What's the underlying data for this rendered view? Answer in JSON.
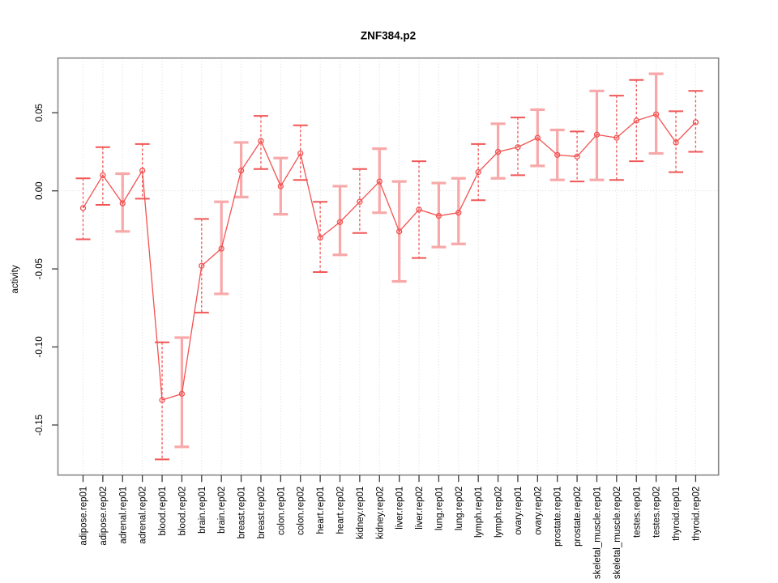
{
  "chart_data": {
    "type": "line",
    "title": "ZNF384.p2",
    "xlabel": "",
    "ylabel": "activity",
    "ylim": [
      -0.183,
      0.085
    ],
    "yticks": [
      {
        "value": 0.05,
        "label": "0.05"
      },
      {
        "value": 0.0,
        "label": "0.00"
      },
      {
        "value": -0.05,
        "label": "-0.05"
      },
      {
        "value": -0.1,
        "label": "-0.10"
      },
      {
        "value": -0.15,
        "label": "-0.15"
      }
    ],
    "grid": "dotted vertical line at every category; dotted horizontal line at y=0",
    "legend_position": "none",
    "marker": "open-circle",
    "error_bars": true,
    "categories": [
      "adipose.rep01",
      "adipose.rep02",
      "adrenal.rep01",
      "adrenal.rep02",
      "blood.rep01",
      "blood.rep02",
      "brain.rep01",
      "brain.rep02",
      "breast.rep01",
      "breast.rep02",
      "colon.rep01",
      "colon.rep02",
      "heart.rep01",
      "heart.rep02",
      "kidney.rep01",
      "kidney.rep02",
      "liver.rep01",
      "liver.rep02",
      "lung.rep01",
      "lung.rep02",
      "lymph.rep01",
      "lymph.rep02",
      "ovary.rep01",
      "ovary.rep02",
      "prostate.rep01",
      "prostate.rep02",
      "skeletal_muscle.rep01",
      "skeletal_muscle.rep02",
      "testes.rep01",
      "testes.rep02",
      "thyroid.rep01",
      "thyroid.rep02"
    ],
    "series": [
      {
        "name": "activity",
        "values": [
          -0.011,
          0.01,
          -0.008,
          0.013,
          -0.134,
          -0.13,
          -0.048,
          -0.037,
          0.013,
          0.032,
          0.003,
          0.024,
          -0.03,
          -0.02,
          -0.007,
          0.006,
          -0.026,
          -0.012,
          -0.016,
          -0.014,
          0.012,
          0.025,
          0.028,
          0.034,
          0.023,
          0.022,
          0.036,
          0.034,
          0.045,
          0.049,
          0.031,
          0.044
        ],
        "error_low": [
          -0.031,
          -0.009,
          -0.026,
          -0.005,
          -0.172,
          -0.164,
          -0.078,
          -0.066,
          -0.004,
          0.014,
          -0.015,
          0.007,
          -0.052,
          -0.041,
          -0.027,
          -0.014,
          -0.058,
          -0.043,
          -0.036,
          -0.034,
          -0.006,
          0.008,
          0.01,
          0.016,
          0.007,
          0.006,
          0.007,
          0.007,
          0.019,
          0.024,
          0.012,
          0.025
        ],
        "error_high": [
          0.008,
          0.028,
          0.011,
          0.03,
          -0.097,
          -0.094,
          -0.018,
          -0.007,
          0.031,
          0.048,
          0.021,
          0.042,
          -0.007,
          0.003,
          0.014,
          0.027,
          0.006,
          0.019,
          0.005,
          0.008,
          0.03,
          0.043,
          0.047,
          0.052,
          0.039,
          0.038,
          0.064,
          0.061,
          0.071,
          0.075,
          0.051,
          0.064
        ],
        "bar_styles": [
          "dashed",
          "dashed",
          "solid",
          "dashed",
          "dashed",
          "solid",
          "dashed",
          "solid",
          "solid",
          "dashed",
          "solid",
          "dashed",
          "dashed",
          "solid",
          "dashed",
          "solid",
          "solid",
          "dashed",
          "solid",
          "solid",
          "dashed",
          "solid",
          "dashed",
          "solid",
          "solid",
          "dashed",
          "solid",
          "dashed",
          "dashed",
          "solid",
          "dashed",
          "dashed"
        ]
      }
    ],
    "colors": {
      "line": "#f25252",
      "error_bar_dashed": "#f15656",
      "error_bar_solid": "#f8a8a8",
      "grid": "#d6d6d6",
      "zero_line": "#cfcfcf",
      "frame": "#898989",
      "tick": "#3c3c3c",
      "text": "#000000",
      "background": "#ffffff"
    }
  }
}
